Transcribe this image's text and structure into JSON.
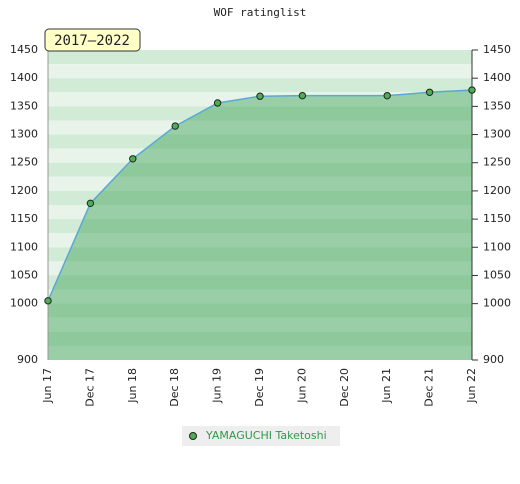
{
  "chart_data": {
    "type": "line",
    "title": "WOF ratinglist",
    "badge": "2017–2022",
    "xticks": [
      "Jun 17",
      "Dec 17",
      "Jun 18",
      "Dec 18",
      "Jun 19",
      "Dec 19",
      "Jun 20",
      "Dec 20",
      "Jun 21",
      "Dec 21",
      "Jun 22"
    ],
    "x": [
      "Jun 17",
      "Dec 17",
      "Jun 18",
      "Dec 18",
      "Jun 19",
      "Dec 19",
      "Jun 20",
      "Jun 21",
      "Dec 21",
      "Jun 22"
    ],
    "series": [
      {
        "name": "YAMAGUCHI Taketoshi",
        "color": "#5aa8d8",
        "values": [
          1005,
          1178,
          1257,
          1315,
          1356,
          1368,
          1369,
          1369,
          1375,
          1379
        ]
      }
    ],
    "ylim": [
      900,
      1450
    ],
    "yticks": [
      900,
      1000,
      1050,
      1100,
      1150,
      1200,
      1250,
      1300,
      1350,
      1400,
      1450
    ]
  }
}
